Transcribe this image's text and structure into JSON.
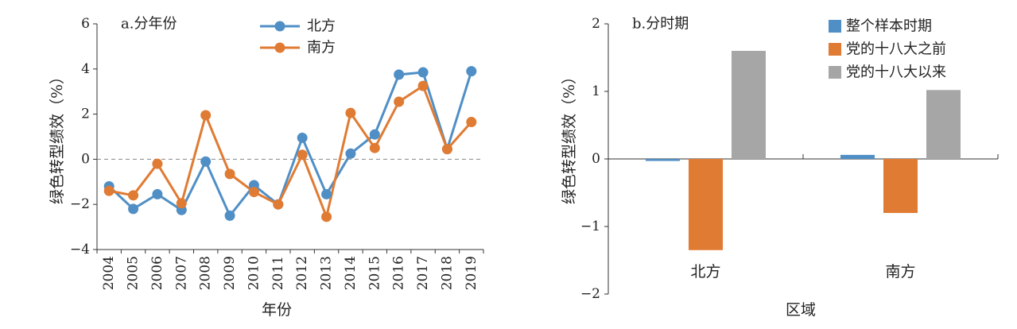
{
  "chart_data": [
    {
      "type": "line",
      "title": "a.分年份",
      "xlabel": "年份",
      "ylabel": "绿色转型绩效（%）",
      "ylim": [
        -4,
        6
      ],
      "yticks": [
        -4,
        -2,
        0,
        2,
        4,
        6
      ],
      "ytick_labels": [
        "−4",
        "−2",
        "0",
        "2",
        "4",
        "6"
      ],
      "categories": [
        "2004",
        "2005",
        "2006",
        "2007",
        "2008",
        "2009",
        "2010",
        "2011",
        "2012",
        "2013",
        "2014",
        "2015",
        "2016",
        "2017",
        "2018",
        "2019"
      ],
      "series": [
        {
          "name": "北方",
          "color": "#4f8fc6",
          "values": [
            -1.2,
            -2.2,
            -1.55,
            -2.25,
            -0.1,
            -2.5,
            -1.15,
            -2.0,
            0.95,
            -1.55,
            0.25,
            1.1,
            3.75,
            3.85,
            0.45,
            3.9
          ]
        },
        {
          "name": "南方",
          "color": "#e07b33",
          "values": [
            -1.4,
            -1.6,
            -0.2,
            -1.95,
            1.95,
            -0.65,
            -1.45,
            -2.0,
            0.2,
            -2.55,
            2.05,
            0.5,
            2.55,
            3.25,
            0.45,
            1.65
          ]
        }
      ],
      "zero_line": "dashed",
      "legend": "top-center"
    },
    {
      "type": "bar",
      "title": "b.分时期",
      "xlabel": "区域",
      "ylabel": "绿色转型绩效（%）",
      "ylim": [
        -2,
        2
      ],
      "yticks": [
        -2,
        -1,
        0,
        1,
        2
      ],
      "ytick_labels": [
        "−2",
        "−1",
        "0",
        "1",
        "2"
      ],
      "categories": [
        "北方",
        "南方"
      ],
      "series": [
        {
          "name": "整个样本时期",
          "color": "#4f8fc6",
          "values": [
            -0.03,
            0.06
          ]
        },
        {
          "name": "党的十八大之前",
          "color": "#e07b33",
          "values": [
            -1.35,
            -0.8
          ]
        },
        {
          "name": "党的十八大以来",
          "color": "#a6a6a6",
          "values": [
            1.6,
            1.02
          ]
        }
      ],
      "legend": "top-right"
    }
  ]
}
